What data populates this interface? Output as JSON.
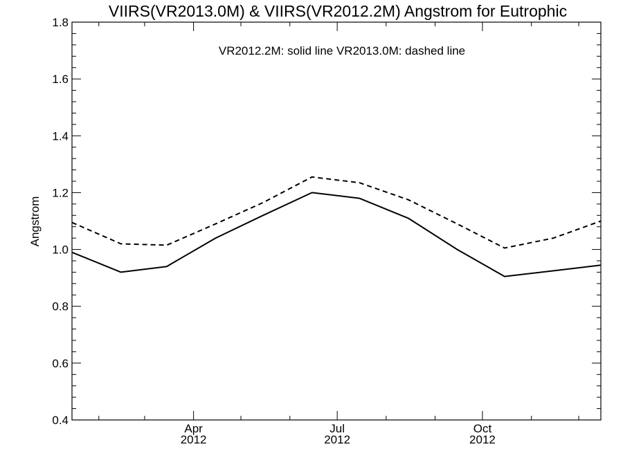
{
  "chart_data": {
    "type": "line",
    "title": "VIIRS(VR2013.0M) & VIIRS(VR2012.2M)  Angstrom for Eutrophic",
    "legend_text": "VR2012.2M: solid line   VR2013.0M: dashed line",
    "ylabel": "Angstrom",
    "xlabel": "",
    "ylim": [
      0.4,
      1.8
    ],
    "y_ticks": [
      "0.4",
      "0.6",
      "0.8",
      "1.0",
      "1.2",
      "1.4",
      "1.6",
      "1.8"
    ],
    "x_tick_labels": [
      {
        "month": "Apr",
        "year": "2012"
      },
      {
        "month": "Jul",
        "year": "2012"
      },
      {
        "month": "Oct",
        "year": "2012"
      }
    ],
    "x": [
      "2012-01-15",
      "2012-02-15",
      "2012-03-15",
      "2012-04-15",
      "2012-05-15",
      "2012-06-15",
      "2012-07-15",
      "2012-08-15",
      "2012-09-15",
      "2012-10-15",
      "2012-11-15",
      "2012-12-15"
    ],
    "series": [
      {
        "name": "VR2012.2M",
        "style": "solid",
        "color": "#000000",
        "values": [
          0.99,
          0.92,
          0.94,
          1.04,
          1.12,
          1.2,
          1.18,
          1.11,
          1.0,
          0.905,
          0.925,
          0.945
        ]
      },
      {
        "name": "VR2013.0M",
        "style": "dashed",
        "color": "#000000",
        "values": [
          1.095,
          1.02,
          1.015,
          1.09,
          1.165,
          1.255,
          1.235,
          1.175,
          1.09,
          1.005,
          1.04,
          1.1
        ]
      }
    ],
    "grid": false,
    "legend_position": "top-center"
  }
}
